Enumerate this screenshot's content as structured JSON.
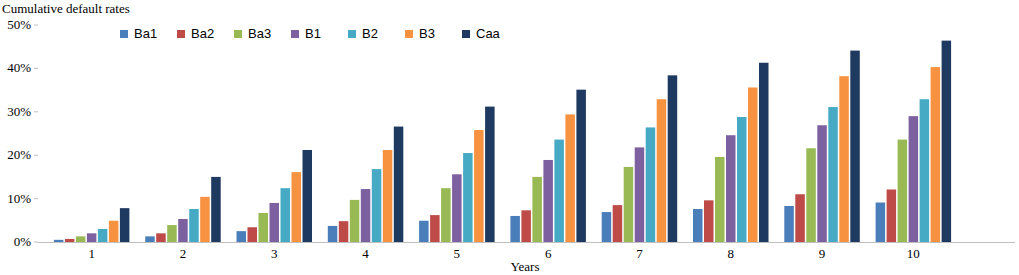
{
  "chart_data": {
    "type": "bar",
    "title": "Cumulative default rates",
    "x_label": "Years",
    "categories": [
      "1",
      "2",
      "3",
      "4",
      "5",
      "6",
      "7",
      "8",
      "9",
      "10"
    ],
    "series": [
      {
        "name": "Ba1",
        "color": "#4a7ebb",
        "values": [
          0.5,
          1.3,
          2.5,
          3.7,
          4.9,
          6.0,
          6.9,
          7.6,
          8.3,
          9.1
        ]
      },
      {
        "name": "Ba2",
        "color": "#be4b48",
        "values": [
          0.7,
          2.0,
          3.4,
          4.8,
          6.2,
          7.3,
          8.5,
          9.6,
          11.0,
          12.1
        ]
      },
      {
        "name": "Ba3",
        "color": "#98b954",
        "values": [
          1.3,
          3.9,
          6.7,
          9.7,
          12.4,
          15.0,
          17.3,
          19.6,
          21.6,
          23.6
        ]
      },
      {
        "name": "B1",
        "color": "#7d60a0",
        "values": [
          2.0,
          5.3,
          9.0,
          12.2,
          15.6,
          18.9,
          21.8,
          24.6,
          26.9,
          29.0
        ]
      },
      {
        "name": "B2",
        "color": "#46aac5",
        "values": [
          3.0,
          7.6,
          12.4,
          16.8,
          20.5,
          23.6,
          26.4,
          28.8,
          31.1,
          32.9
        ]
      },
      {
        "name": "B3",
        "color": "#f69240",
        "values": [
          4.9,
          10.4,
          16.1,
          21.2,
          25.8,
          29.4,
          32.9,
          35.6,
          38.2,
          40.3
        ]
      },
      {
        "name": "Caa",
        "color": "#1f3a60",
        "values": [
          7.8,
          15.0,
          21.2,
          26.6,
          31.2,
          35.1,
          38.4,
          41.3,
          44.1,
          46.4
        ]
      }
    ],
    "ylim": [
      0,
      50
    ],
    "yticks": [
      {
        "value": 0,
        "label": "0%"
      },
      {
        "value": 10,
        "label": "10%"
      },
      {
        "value": 20,
        "label": "20%"
      },
      {
        "value": 30,
        "label": "30%"
      },
      {
        "value": 40,
        "label": "40%"
      },
      {
        "value": 50,
        "label": "50%"
      }
    ],
    "grid": false,
    "legend": "top-left"
  }
}
